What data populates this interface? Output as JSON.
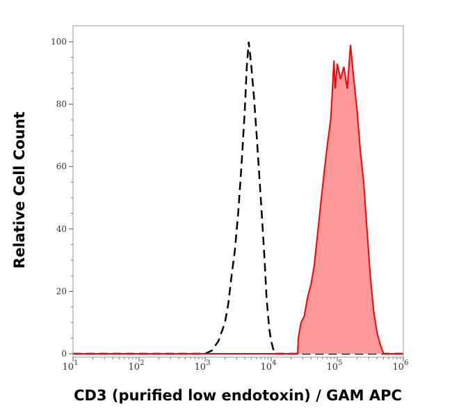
{
  "chart_data": {
    "type": "area",
    "title": "",
    "xlabel": "CD3 (purified low endotoxin) / GAM APC",
    "ylabel": "Relative Cell Count",
    "x_scale": "log",
    "xlim": [
      10,
      1000000
    ],
    "ylim": [
      0,
      105
    ],
    "x_ticks": [
      {
        "base": "10",
        "exp": "1",
        "value": 10
      },
      {
        "base": "10",
        "exp": "2",
        "value": 100
      },
      {
        "base": "10",
        "exp": "3",
        "value": 1000
      },
      {
        "base": "10",
        "exp": "4",
        "value": 10000
      },
      {
        "base": "10",
        "exp": "5",
        "value": 100000
      },
      {
        "base": "10",
        "exp": "6",
        "value": 1000000
      }
    ],
    "y_ticks": [
      "0",
      "20",
      "40",
      "60",
      "80",
      "100"
    ],
    "grid": false,
    "series": [
      {
        "style": "dashed-line",
        "color": "#000000",
        "x": [
          10,
          1000,
          1259,
          1585,
          1995,
          2239,
          2512,
          2818,
          3162,
          3548,
          3981,
          4266,
          4571,
          5012,
          5495,
          6026,
          6607,
          7244,
          7943,
          8511,
          9333,
          10000,
          11220,
          1000000
        ],
        "y": [
          0,
          0,
          1,
          4,
          10,
          16,
          25,
          33,
          45,
          60,
          78,
          92,
          100,
          92,
          82,
          70,
          57,
          44,
          30,
          18,
          8,
          4,
          0,
          0
        ]
      },
      {
        "style": "filled",
        "color": "#ff0000",
        "fill": "#ff9999",
        "x": [
          10,
          25119,
          25704,
          28184,
          31623,
          35481,
          39811,
          44668,
          50119,
          56234,
          63096,
          70795,
          79433,
          83176,
          89125,
          93325,
          100000,
          112202,
          125893,
          141254,
          158489,
          177828,
          199526,
          223872,
          251189,
          281838,
          316228,
          354813,
          398107,
          446684,
          501187,
          1000000
        ],
        "y": [
          0,
          0,
          5,
          10,
          12,
          18,
          22,
          28,
          38,
          48,
          58,
          67,
          75,
          82,
          94,
          85,
          93,
          88,
          92,
          85,
          99,
          88,
          78,
          65,
          55,
          40,
          25,
          14,
          7,
          3,
          0,
          0
        ]
      }
    ]
  }
}
